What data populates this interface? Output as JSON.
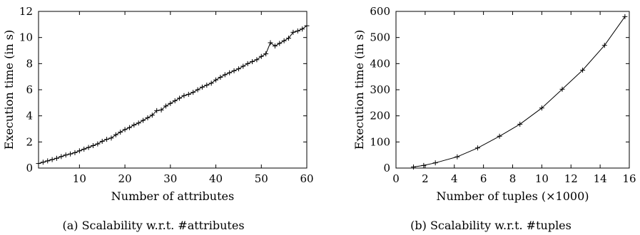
{
  "chart_data": [
    {
      "type": "line",
      "caption": "(a) Scalability w.r.t. #attributes",
      "xlabel": "Number of attributes",
      "ylabel": "Execution time (in s)",
      "xlim": [
        1,
        60
      ],
      "ylim": [
        0,
        12
      ],
      "xticks": [
        10,
        20,
        30,
        40,
        50,
        60
      ],
      "yticks": [
        0,
        2,
        4,
        6,
        8,
        10,
        12
      ],
      "grid": false,
      "marker": "+",
      "series": [
        {
          "x": [
            1,
            2,
            3,
            4,
            5,
            6,
            7,
            8,
            9,
            10,
            11,
            12,
            13,
            14,
            15,
            16,
            17,
            18,
            19,
            20,
            21,
            22,
            23,
            24,
            25,
            26,
            27,
            28,
            29,
            30,
            31,
            32,
            33,
            34,
            35,
            36,
            37,
            38,
            39,
            40,
            41,
            42,
            43,
            44,
            45,
            46,
            47,
            48,
            49,
            50,
            51,
            52,
            53,
            54,
            55,
            56,
            57,
            58,
            59,
            60
          ],
          "y": [
            0.35,
            0.45,
            0.55,
            0.65,
            0.75,
            0.88,
            1.0,
            1.08,
            1.18,
            1.32,
            1.45,
            1.58,
            1.72,
            1.85,
            2.05,
            2.2,
            2.3,
            2.55,
            2.75,
            2.95,
            3.1,
            3.3,
            3.45,
            3.65,
            3.85,
            4.05,
            4.4,
            4.45,
            4.75,
            4.95,
            5.15,
            5.35,
            5.55,
            5.65,
            5.8,
            6.0,
            6.2,
            6.35,
            6.5,
            6.75,
            6.95,
            7.15,
            7.3,
            7.45,
            7.6,
            7.8,
            8.0,
            8.15,
            8.3,
            8.55,
            8.75,
            9.6,
            9.35,
            9.55,
            9.75,
            9.95,
            10.4,
            10.5,
            10.65,
            10.9
          ]
        }
      ]
    },
    {
      "type": "line",
      "caption": "(b) Scalability w.r.t. #tuples",
      "xlabel": "Number of tuples (×1000)",
      "ylabel": "Execution time (in s)",
      "xlim": [
        0,
        16
      ],
      "ylim": [
        0,
        600
      ],
      "xticks": [
        0,
        2,
        4,
        6,
        8,
        10,
        12,
        14,
        16
      ],
      "yticks": [
        0,
        100,
        200,
        300,
        400,
        500,
        600
      ],
      "grid": false,
      "marker": "+",
      "series": [
        {
          "x": [
            1.2,
            1.9,
            2.7,
            4.2,
            5.6,
            7.1,
            8.5,
            10.0,
            11.4,
            12.8,
            14.3,
            15.7
          ],
          "y": [
            4,
            10,
            20,
            43,
            77,
            122,
            168,
            230,
            302,
            375,
            470,
            580
          ]
        }
      ]
    }
  ]
}
